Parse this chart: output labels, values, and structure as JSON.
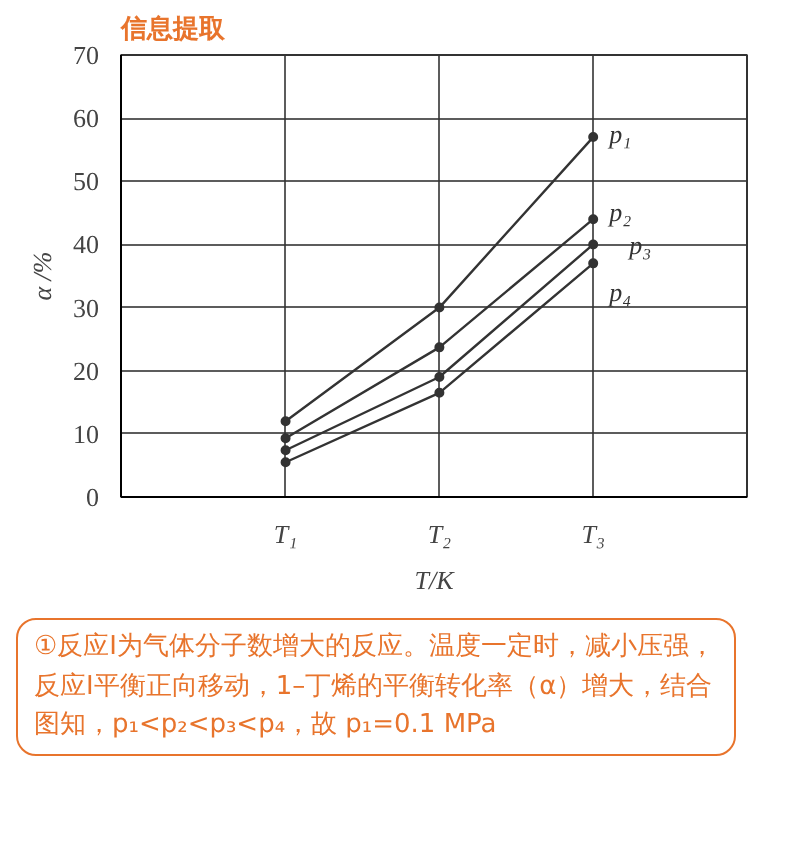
{
  "chart_data": {
    "type": "line",
    "title": "信息提取",
    "xlabel": "T/K",
    "ylabel": "α /%",
    "categories": [
      "T₁",
      "T₂",
      "T₃"
    ],
    "series": [
      {
        "name": "p₁",
        "color": "#333333",
        "values": [
          12,
          30,
          57
        ]
      },
      {
        "name": "p₂",
        "color": "#333333",
        "values": [
          9.3,
          23.7,
          44
        ]
      },
      {
        "name": "p₃",
        "color": "#333333",
        "values": [
          7.4,
          19,
          40
        ]
      },
      {
        "name": "p₄",
        "color": "#333333",
        "values": [
          5.5,
          16.5,
          37
        ]
      }
    ],
    "ylim": [
      0,
      70
    ],
    "yticks": [
      0,
      10,
      20,
      30,
      40,
      50,
      60,
      70
    ],
    "grid": true,
    "marker": "circle",
    "line_style": "solid",
    "annotations": [
      "①反应Ⅰ为气体分子数增大的反应。温度一定时，减小压强，反应Ⅰ平衡正向移动，1–丁烯的平衡转化率（α）增大，结合图知，p₁<p₂<p₃<p₄，故 p₁=0.1 MPa"
    ]
  }
}
